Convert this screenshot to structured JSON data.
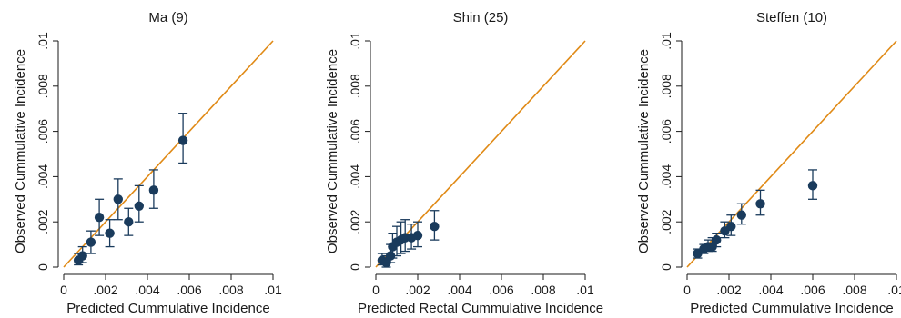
{
  "chart_data": [
    {
      "type": "scatter",
      "title": "Ma (9)",
      "xlabel": "Predicted Cummulative Incidence",
      "ylabel": "Observed Cummulative Incidence",
      "xlim": [
        0,
        0.01
      ],
      "ylim": [
        0,
        0.01
      ],
      "x_ticks": [
        "0",
        ".002",
        ".004",
        ".006",
        ".008",
        ".01"
      ],
      "y_ticks": [
        "0",
        ".002",
        ".004",
        ".006",
        ".008",
        ".01"
      ],
      "reference_line": "y = x",
      "points": [
        {
          "x": 0.0007,
          "y": 0.0003,
          "lo": 0.0001,
          "hi": 0.0006
        },
        {
          "x": 0.0009,
          "y": 0.0005,
          "lo": 0.0002,
          "hi": 0.0009
        },
        {
          "x": 0.0013,
          "y": 0.0011,
          "lo": 0.0006,
          "hi": 0.0016
        },
        {
          "x": 0.0017,
          "y": 0.0022,
          "lo": 0.0014,
          "hi": 0.003
        },
        {
          "x": 0.0022,
          "y": 0.0015,
          "lo": 0.0009,
          "hi": 0.0021
        },
        {
          "x": 0.0026,
          "y": 0.003,
          "lo": 0.0021,
          "hi": 0.0039
        },
        {
          "x": 0.0031,
          "y": 0.002,
          "lo": 0.0014,
          "hi": 0.0026
        },
        {
          "x": 0.0036,
          "y": 0.0027,
          "lo": 0.002,
          "hi": 0.0036
        },
        {
          "x": 0.0043,
          "y": 0.0034,
          "lo": 0.0026,
          "hi": 0.0043
        },
        {
          "x": 0.0057,
          "y": 0.0056,
          "lo": 0.0046,
          "hi": 0.0068
        }
      ]
    },
    {
      "type": "scatter",
      "title": "Shin (25)",
      "xlabel": "Predicted Rectal Cummulative Incidence",
      "ylabel": "Observed Cummulative Incidence",
      "xlim": [
        0,
        0.01
      ],
      "ylim": [
        0,
        0.01
      ],
      "x_ticks": [
        "0",
        ".002",
        ".004",
        ".006",
        ".008",
        ".01"
      ],
      "y_ticks": [
        "0",
        ".002",
        ".004",
        ".006",
        ".008",
        ".01"
      ],
      "reference_line": "y = x",
      "points": [
        {
          "x": 0.0003,
          "y": 0.0003,
          "lo": 0.0001,
          "hi": 0.0006
        },
        {
          "x": 0.0005,
          "y": 0.0002,
          "lo": 0.0,
          "hi": 0.0005
        },
        {
          "x": 0.0007,
          "y": 0.0005,
          "lo": 0.0002,
          "hi": 0.001
        },
        {
          "x": 0.0008,
          "y": 0.0009,
          "lo": 0.0004,
          "hi": 0.0015
        },
        {
          "x": 0.001,
          "y": 0.0011,
          "lo": 0.0005,
          "hi": 0.0018
        },
        {
          "x": 0.0012,
          "y": 0.0012,
          "lo": 0.0006,
          "hi": 0.002
        },
        {
          "x": 0.0014,
          "y": 0.0013,
          "lo": 0.0007,
          "hi": 0.0021
        },
        {
          "x": 0.0017,
          "y": 0.0013,
          "lo": 0.0008,
          "hi": 0.0019
        },
        {
          "x": 0.002,
          "y": 0.0014,
          "lo": 0.0009,
          "hi": 0.002
        },
        {
          "x": 0.0028,
          "y": 0.0018,
          "lo": 0.0012,
          "hi": 0.0025
        }
      ]
    },
    {
      "type": "scatter",
      "title": "Steffen (10)",
      "xlabel": "Predicted Cummulative Incidence",
      "ylabel": "Observed Cummulative Incidence",
      "xlim": [
        0,
        0.01
      ],
      "ylim": [
        0,
        0.01
      ],
      "x_ticks": [
        "0",
        ".002",
        ".004",
        ".006",
        ".008",
        ".01"
      ],
      "y_ticks": [
        "0",
        ".002",
        ".004",
        ".006",
        ".008",
        ".01"
      ],
      "reference_line": "y = x",
      "points": [
        {
          "x": 0.0005,
          "y": 0.0006,
          "lo": 0.0004,
          "hi": 0.0008
        },
        {
          "x": 0.0008,
          "y": 0.0008,
          "lo": 0.0006,
          "hi": 0.001
        },
        {
          "x": 0.001,
          "y": 0.0009,
          "lo": 0.0007,
          "hi": 0.0012
        },
        {
          "x": 0.0012,
          "y": 0.0009,
          "lo": 0.0007,
          "hi": 0.0013
        },
        {
          "x": 0.0014,
          "y": 0.0012,
          "lo": 0.0009,
          "hi": 0.0015
        },
        {
          "x": 0.0018,
          "y": 0.0016,
          "lo": 0.0013,
          "hi": 0.002
        },
        {
          "x": 0.0021,
          "y": 0.0018,
          "lo": 0.0014,
          "hi": 0.0023
        },
        {
          "x": 0.0026,
          "y": 0.0023,
          "lo": 0.0019,
          "hi": 0.0028
        },
        {
          "x": 0.0035,
          "y": 0.0028,
          "lo": 0.0023,
          "hi": 0.0034
        },
        {
          "x": 0.006,
          "y": 0.0036,
          "lo": 0.003,
          "hi": 0.0043
        }
      ]
    }
  ],
  "colors": {
    "reference_line": "#e08a16",
    "marker": "#1a3b5c",
    "axis": "#1a1a1a"
  }
}
